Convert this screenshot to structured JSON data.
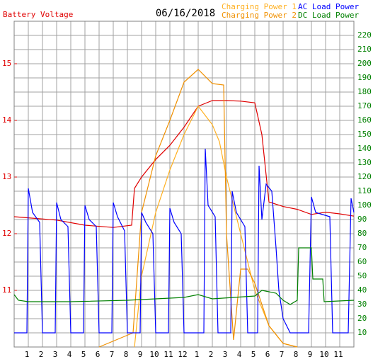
{
  "chart_data": {
    "type": "line",
    "title": "Battery Voltage",
    "date": "06/16/2018",
    "grid": true,
    "xlim": [
      0,
      24
    ],
    "xticks": [
      1,
      2,
      3,
      4,
      5,
      6,
      7,
      8,
      9,
      10,
      11,
      12,
      {
        "value": 13,
        "label": "1"
      },
      {
        "value": 14,
        "label": "2"
      },
      {
        "value": 15,
        "label": "3"
      },
      {
        "value": 16,
        "label": "4"
      },
      {
        "value": 17,
        "label": "5"
      },
      {
        "value": 18,
        "label": "6"
      },
      {
        "value": 19,
        "label": "7"
      },
      {
        "value": 20,
        "label": "8"
      },
      {
        "value": 21,
        "label": "9"
      },
      {
        "value": 22,
        "label": "10"
      },
      {
        "value": 23,
        "label": "11"
      }
    ],
    "ylim": [
      10,
      15.75
    ],
    "yticks": [
      11,
      12,
      13,
      14,
      15
    ],
    "y2lim": [
      0,
      230
    ],
    "y2ticks": [
      10,
      20,
      30,
      40,
      50,
      60,
      70,
      80,
      90,
      100,
      110,
      120,
      130,
      140,
      150,
      160,
      170,
      180,
      190,
      200,
      210,
      220
    ],
    "series": [
      {
        "name": "Battery Voltage",
        "color": "#e00000",
        "axis": "y",
        "x": [
          0,
          1,
          3,
          5,
          7,
          8.3,
          8.5,
          9,
          10,
          11,
          12,
          13,
          13.5,
          14,
          15,
          16,
          17,
          17.5,
          18,
          19,
          20,
          21,
          22,
          23,
          24
        ],
        "values": [
          12.3,
          12.28,
          12.24,
          12.15,
          12.11,
          12.15,
          12.8,
          13.0,
          13.31,
          13.56,
          13.88,
          14.25,
          14.3,
          14.35,
          14.35,
          14.34,
          14.31,
          13.75,
          12.56,
          12.48,
          12.43,
          12.34,
          12.38,
          12.35,
          12.31
        ]
      },
      {
        "name": "Charging Power 1",
        "color": "#ffb020",
        "axis": "y2",
        "x": [
          8.5,
          9,
          10,
          11,
          12,
          13,
          14,
          14.5,
          15,
          16,
          17,
          18,
          19,
          20
        ],
        "values": [
          0,
          50,
          95,
          125,
          150,
          170,
          157,
          145,
          120,
          80,
          40,
          15,
          2.5,
          0
        ]
      },
      {
        "name": "Charging Power 2",
        "color": "#f09000",
        "axis": "y2",
        "x": [
          6,
          8.4,
          9,
          10,
          11,
          12,
          13,
          14,
          14.8,
          15,
          15.5,
          16,
          16.5,
          17,
          18,
          19,
          20
        ],
        "values": [
          0,
          10,
          95,
          135,
          160,
          187,
          196,
          186,
          185,
          80,
          5,
          55,
          55,
          45,
          15,
          2.5,
          0
        ]
      },
      {
        "name": "AC Load Power",
        "color": "#0000ff",
        "axis": "y2",
        "x": [
          0,
          0.9,
          1,
          1.3,
          1.8,
          2,
          2.9,
          3,
          3.3,
          3.8,
          4,
          4.9,
          5,
          5.3,
          5.8,
          6,
          6.9,
          7,
          7.3,
          7.8,
          8,
          8.9,
          9,
          9.3,
          9.8,
          10,
          10.9,
          11,
          11.3,
          11.8,
          12,
          13.4,
          13.5,
          13.7,
          14.2,
          14.4,
          15.3,
          15.4,
          15.7,
          16.3,
          16.5,
          17.2,
          17.3,
          17.5,
          17.8,
          18.2,
          18.5,
          18.7,
          19,
          19.5,
          20,
          20.8,
          21,
          21.3,
          22.3,
          22.5,
          23.6,
          23.8,
          24
        ],
        "values": [
          10,
          10,
          112,
          95,
          88,
          10,
          10,
          102,
          90,
          85,
          10,
          10,
          100,
          90,
          85,
          10,
          10,
          102,
          92,
          82,
          10,
          10,
          95,
          88,
          80,
          10,
          10,
          98,
          88,
          80,
          10,
          10,
          140,
          100,
          92,
          10,
          10,
          110,
          95,
          85,
          10,
          10,
          128,
          90,
          115,
          110,
          70,
          40,
          20,
          10,
          10,
          10,
          106,
          95,
          92,
          10,
          10,
          105,
          95
        ]
      },
      {
        "name": "DC Load Power",
        "color": "#008000",
        "axis": "y2",
        "x": [
          0,
          0.3,
          1,
          4,
          8,
          12,
          13,
          14,
          17,
          17.5,
          18.5,
          19,
          19.5,
          20,
          20.1,
          21,
          21.1,
          21.8,
          21.9,
          24
        ],
        "values": [
          37,
          33,
          32,
          32,
          33,
          35,
          37,
          34,
          36,
          40,
          38,
          33,
          30,
          33,
          70,
          70,
          48,
          48,
          32,
          33
        ]
      }
    ]
  }
}
